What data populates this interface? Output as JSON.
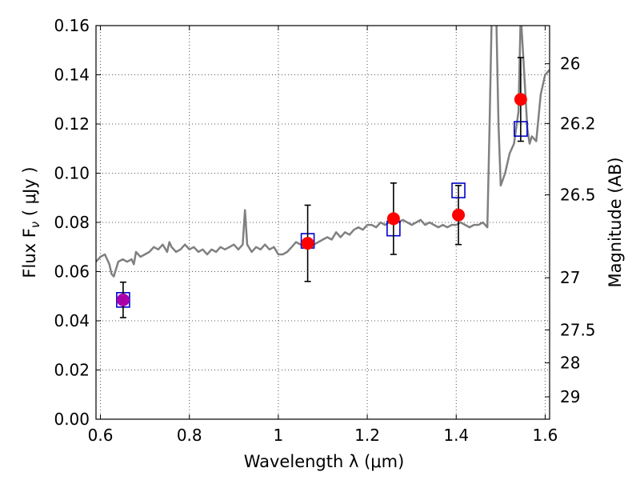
{
  "chart_data": {
    "type": "scatter",
    "xlabel": "Wavelength  λ (μm)",
    "ylabel": "Flux  F",
    "ylabel_sub": "ν",
    "ylabel_unit": "  ( μJy )",
    "y2label": "Magnitude (AB)",
    "xlim": [
      0.59,
      1.61
    ],
    "ylim": [
      0.0,
      0.16
    ],
    "grid": true,
    "x_ticks": [
      0.6,
      0.8,
      1.0,
      1.2,
      1.4,
      1.6
    ],
    "x_tick_labels": [
      "0.6",
      "0.8",
      "1",
      "1.2",
      "1.4",
      "1.6"
    ],
    "y_ticks": [
      0.0,
      0.02,
      0.04,
      0.06,
      0.08,
      0.1,
      0.12,
      0.14,
      0.16
    ],
    "y_tick_labels": [
      "0.00",
      "0.02",
      "0.04",
      "0.06",
      "0.08",
      "0.10",
      "0.12",
      "0.14",
      "0.16"
    ],
    "y2_ticks": [
      {
        "label": "26",
        "flux": 0.1445
      },
      {
        "label": "26.2",
        "flux": 0.1202
      },
      {
        "label": "26.5",
        "flux": 0.0912
      },
      {
        "label": "27",
        "flux": 0.0575
      },
      {
        "label": "27.5",
        "flux": 0.0363
      },
      {
        "label": "28",
        "flux": 0.0229
      },
      {
        "label": "29",
        "flux": 0.0091
      }
    ],
    "colors": {
      "model_line": "#808080",
      "observed": "#ff0000",
      "model_photometry": "#0000cc",
      "overlap_point": "#aa00aa",
      "error_bar": "#000000",
      "grid": "#555555"
    },
    "series": [
      {
        "kind": "line",
        "points": [
          [
            0.59,
            0.064
          ],
          [
            0.6,
            0.066
          ],
          [
            0.61,
            0.067
          ],
          [
            0.615,
            0.065
          ],
          [
            0.62,
            0.063
          ],
          [
            0.625,
            0.059
          ],
          [
            0.63,
            0.058
          ],
          [
            0.64,
            0.064
          ],
          [
            0.65,
            0.065
          ],
          [
            0.66,
            0.064
          ],
          [
            0.67,
            0.065
          ],
          [
            0.675,
            0.063
          ],
          [
            0.68,
            0.068
          ],
          [
            0.69,
            0.066
          ],
          [
            0.7,
            0.067
          ],
          [
            0.71,
            0.068
          ],
          [
            0.72,
            0.07
          ],
          [
            0.73,
            0.069
          ],
          [
            0.74,
            0.071
          ],
          [
            0.75,
            0.068
          ],
          [
            0.755,
            0.072
          ],
          [
            0.76,
            0.07
          ],
          [
            0.77,
            0.068
          ],
          [
            0.78,
            0.069
          ],
          [
            0.79,
            0.071
          ],
          [
            0.8,
            0.069
          ],
          [
            0.81,
            0.07
          ],
          [
            0.82,
            0.068
          ],
          [
            0.83,
            0.069
          ],
          [
            0.84,
            0.067
          ],
          [
            0.85,
            0.069
          ],
          [
            0.86,
            0.068
          ],
          [
            0.87,
            0.07
          ],
          [
            0.88,
            0.069
          ],
          [
            0.89,
            0.07
          ],
          [
            0.9,
            0.071
          ],
          [
            0.91,
            0.069
          ],
          [
            0.92,
            0.071
          ],
          [
            0.925,
            0.085
          ],
          [
            0.93,
            0.071
          ],
          [
            0.94,
            0.068
          ],
          [
            0.95,
            0.07
          ],
          [
            0.96,
            0.069
          ],
          [
            0.97,
            0.071
          ],
          [
            0.98,
            0.069
          ],
          [
            0.99,
            0.07
          ],
          [
            1.0,
            0.067
          ],
          [
            1.01,
            0.067
          ],
          [
            1.02,
            0.068
          ],
          [
            1.03,
            0.07
          ],
          [
            1.04,
            0.072
          ],
          [
            1.05,
            0.071
          ],
          [
            1.06,
            0.073
          ],
          [
            1.07,
            0.072
          ],
          [
            1.08,
            0.071
          ],
          [
            1.09,
            0.072
          ],
          [
            1.1,
            0.073
          ],
          [
            1.11,
            0.074
          ],
          [
            1.12,
            0.073
          ],
          [
            1.13,
            0.076
          ],
          [
            1.14,
            0.074
          ],
          [
            1.15,
            0.076
          ],
          [
            1.16,
            0.075
          ],
          [
            1.17,
            0.077
          ],
          [
            1.18,
            0.078
          ],
          [
            1.19,
            0.077
          ],
          [
            1.2,
            0.079
          ],
          [
            1.21,
            0.079
          ],
          [
            1.22,
            0.078
          ],
          [
            1.23,
            0.08
          ],
          [
            1.24,
            0.079
          ],
          [
            1.25,
            0.08
          ],
          [
            1.26,
            0.081
          ],
          [
            1.27,
            0.08
          ],
          [
            1.28,
            0.081
          ],
          [
            1.29,
            0.08
          ],
          [
            1.3,
            0.079
          ],
          [
            1.31,
            0.08
          ],
          [
            1.32,
            0.081
          ],
          [
            1.33,
            0.079
          ],
          [
            1.34,
            0.08
          ],
          [
            1.35,
            0.079
          ],
          [
            1.36,
            0.078
          ],
          [
            1.37,
            0.079
          ],
          [
            1.38,
            0.078
          ],
          [
            1.39,
            0.079
          ],
          [
            1.4,
            0.079
          ],
          [
            1.41,
            0.08
          ],
          [
            1.42,
            0.079
          ],
          [
            1.43,
            0.078
          ],
          [
            1.44,
            0.079
          ],
          [
            1.45,
            0.079
          ],
          [
            1.46,
            0.08
          ],
          [
            1.47,
            0.078
          ],
          [
            1.475,
            0.12
          ],
          [
            1.48,
            0.165
          ],
          [
            1.49,
            0.165
          ],
          [
            1.495,
            0.12
          ],
          [
            1.5,
            0.095
          ],
          [
            1.51,
            0.1
          ],
          [
            1.52,
            0.108
          ],
          [
            1.53,
            0.112
          ],
          [
            1.54,
            0.125
          ],
          [
            1.545,
            0.165
          ],
          [
            1.55,
            0.15
          ],
          [
            1.56,
            0.118
          ],
          [
            1.565,
            0.112
          ],
          [
            1.57,
            0.115
          ],
          [
            1.58,
            0.113
          ],
          [
            1.59,
            0.132
          ],
          [
            1.6,
            0.14
          ],
          [
            1.61,
            0.142
          ]
        ]
      },
      {
        "kind": "model_photometry",
        "marker": "square",
        "points": [
          [
            0.651,
            0.0485
          ],
          [
            1.066,
            0.0725
          ],
          [
            1.259,
            0.0775
          ],
          [
            1.405,
            0.093
          ],
          [
            1.545,
            0.118
          ]
        ]
      },
      {
        "kind": "observed",
        "marker": "circle",
        "points": [
          {
            "x": 0.651,
            "y": 0.0485,
            "err": 0.0072
          },
          {
            "x": 1.066,
            "y": 0.0715,
            "err": 0.0155
          },
          {
            "x": 1.259,
            "y": 0.0815,
            "err": 0.0145
          },
          {
            "x": 1.405,
            "y": 0.083,
            "err": 0.012
          },
          {
            "x": 1.545,
            "y": 0.13,
            "err": 0.017
          }
        ]
      }
    ]
  }
}
